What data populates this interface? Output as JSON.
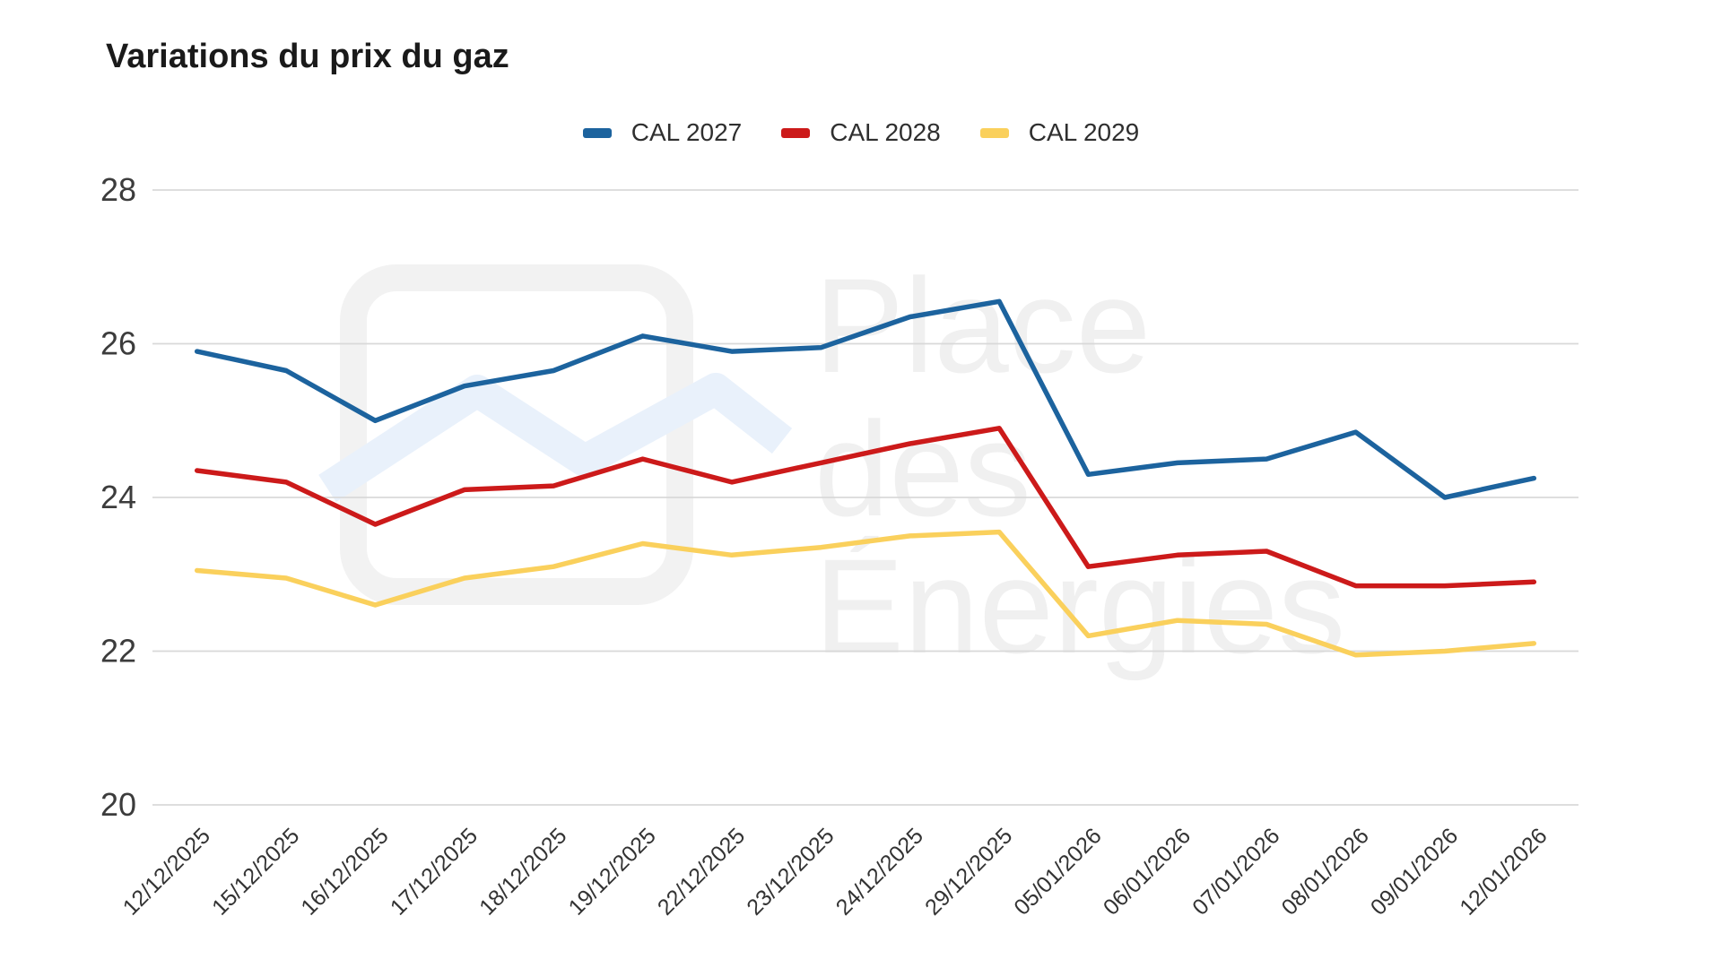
{
  "title": "Variations du prix du gaz",
  "watermark": {
    "line1": "Place",
    "line2": "des",
    "line3": "Énergies"
  },
  "chart_data": {
    "type": "line",
    "title": "Variations du prix du gaz",
    "categories": [
      "12/12/2025",
      "15/12/2025",
      "16/12/2025",
      "17/12/2025",
      "18/12/2025",
      "19/12/2025",
      "22/12/2025",
      "23/12/2025",
      "24/12/2025",
      "29/12/2025",
      "05/01/2026",
      "06/01/2026",
      "07/01/2026",
      "08/01/2026",
      "09/01/2026",
      "12/01/2026"
    ],
    "series": [
      {
        "name": "CAL 2027",
        "color": "#1c639e",
        "values": [
          25.9,
          25.65,
          25.0,
          25.45,
          25.65,
          26.1,
          25.9,
          25.95,
          26.35,
          26.55,
          24.3,
          24.45,
          24.5,
          24.85,
          24.0,
          24.25
        ]
      },
      {
        "name": "CAL 2028",
        "color": "#cc1a1a",
        "values": [
          24.35,
          24.2,
          23.65,
          24.1,
          24.15,
          24.5,
          24.2,
          24.45,
          24.7,
          24.9,
          23.1,
          23.25,
          23.3,
          22.85,
          22.85,
          22.9
        ]
      },
      {
        "name": "CAL 2029",
        "color": "#fad05c",
        "values": [
          23.05,
          22.95,
          22.6,
          22.95,
          23.1,
          23.4,
          23.25,
          23.35,
          23.5,
          23.55,
          22.2,
          22.4,
          22.35,
          21.95,
          22.0,
          22.1
        ]
      }
    ],
    "xlabel": "",
    "ylabel": "",
    "ylim": [
      20,
      28
    ],
    "yticks": [
      20,
      22,
      24,
      26,
      28
    ],
    "grid": "horizontal",
    "grid_color": "#d9d9d9",
    "legend_position": "top-center",
    "x_tick_rotation": -45
  }
}
